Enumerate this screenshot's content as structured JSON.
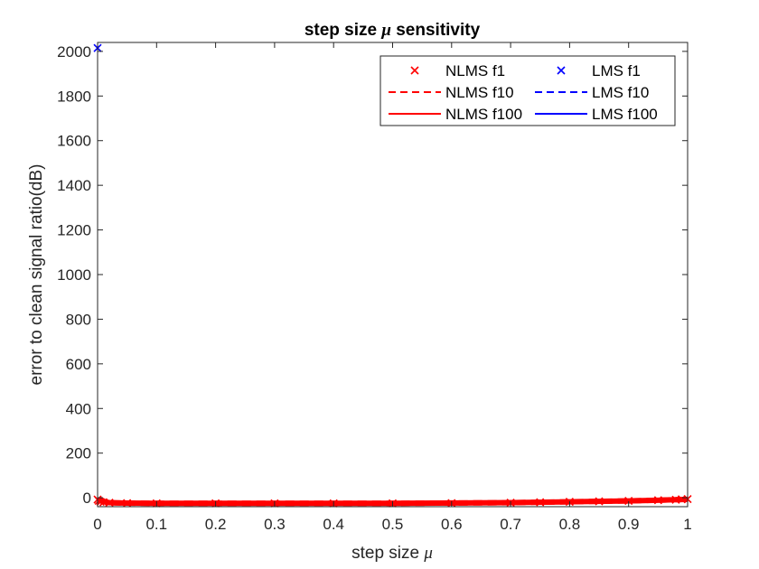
{
  "chart_data": {
    "type": "line",
    "title_prefix": "step size ",
    "title_symbol": "μ",
    "title_suffix": " sensitivity",
    "xlabel_prefix": "step size ",
    "xlabel_symbol": "μ",
    "ylabel": "error to clean signal ratio(dB)",
    "xlim": [
      0,
      1
    ],
    "ylim": [
      -40,
      2040
    ],
    "xticks": [
      0,
      0.1,
      0.2,
      0.3,
      0.4,
      0.5,
      0.6,
      0.7,
      0.8,
      0.9,
      1
    ],
    "xtick_labels": [
      "0",
      "0.1",
      "0.2",
      "0.3",
      "0.4",
      "0.5",
      "0.6",
      "0.7",
      "0.8",
      "0.9",
      "1"
    ],
    "yticks": [
      0,
      200,
      400,
      600,
      800,
      1000,
      1200,
      1400,
      1600,
      1800,
      2000
    ],
    "ytick_labels": [
      "0",
      "200",
      "400",
      "600",
      "800",
      "1000",
      "1200",
      "1400",
      "1600",
      "1800",
      "2000"
    ],
    "grid": false,
    "legend_position": "top-right",
    "colors": {
      "nlms": "#ff0000",
      "lms": "#0000ff",
      "axis": "#262626"
    },
    "series": [
      {
        "name": "NLMS f1",
        "family": "nlms",
        "style": "marker-x",
        "x": [
          0,
          0.002,
          0.005,
          0.01,
          0.02,
          0.05,
          0.1,
          0.2,
          0.3,
          0.4,
          0.5,
          0.6,
          0.7,
          0.75,
          0.8,
          0.85,
          0.9,
          0.95,
          0.98,
          0.99,
          1
        ],
        "y": [
          -8,
          -14,
          -18,
          -20,
          -22,
          -24,
          -25,
          -25,
          -25,
          -25,
          -25,
          -24,
          -22,
          -20,
          -18,
          -16,
          -14,
          -11,
          -9,
          -7,
          -6
        ]
      },
      {
        "name": "LMS f1",
        "family": "lms",
        "style": "marker-x",
        "x": [
          0
        ],
        "y": [
          2015
        ]
      },
      {
        "name": "NLMS f10",
        "family": "nlms",
        "style": "dashed",
        "x": [
          0,
          0.02,
          0.05,
          0.1,
          0.3,
          0.5,
          0.7,
          0.8,
          0.9,
          0.95,
          1
        ],
        "y": [
          -10,
          -22,
          -24,
          -25,
          -25,
          -25,
          -22,
          -18,
          -14,
          -11,
          -7
        ]
      },
      {
        "name": "LMS f10",
        "family": "lms",
        "style": "dashed",
        "x": [],
        "y": []
      },
      {
        "name": "NLMS f100",
        "family": "nlms",
        "style": "solid",
        "x": [
          0,
          0.02,
          0.05,
          0.1,
          0.3,
          0.5,
          0.7,
          0.8,
          0.9,
          0.95,
          1
        ],
        "y": [
          -10,
          -22,
          -24,
          -25,
          -25,
          -25,
          -22,
          -18,
          -14,
          -11,
          -7
        ]
      },
      {
        "name": "LMS f100",
        "family": "lms",
        "style": "solid",
        "x": [],
        "y": []
      }
    ]
  }
}
